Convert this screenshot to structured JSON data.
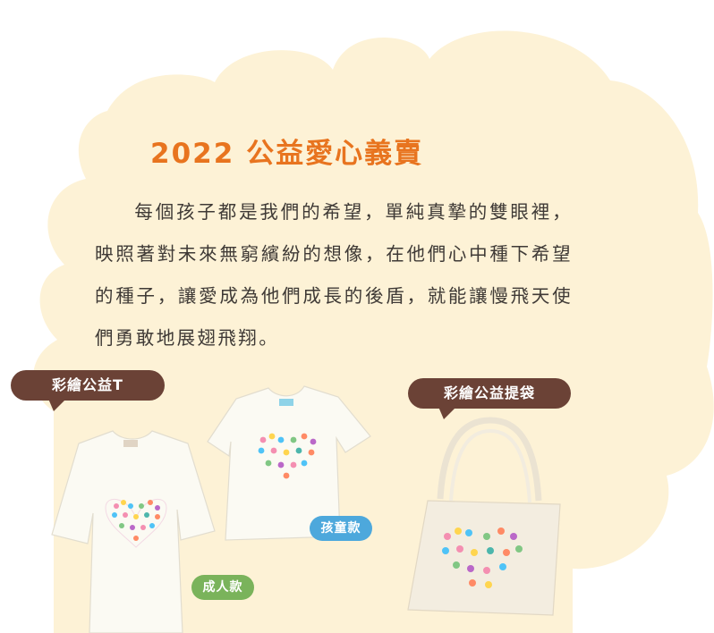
{
  "title": "2022 公益愛心義賣",
  "paragraph": "每個孩子都是我們的希望，單純真摯的雙眼裡，映照著對未來無窮繽紛的想像，在他們心中種下希望的種子，讓愛成為他們成長的後盾，就能讓慢飛天使們勇敢地展翅飛翔。",
  "products": {
    "tshirt_label": "彩繪公益T",
    "bag_label": "彩繪公益提袋",
    "adult_tag": "成人款",
    "kid_tag": "孩童款"
  },
  "colors": {
    "cloud": "#fdf2d6",
    "title": "#e8741f",
    "bubble": "#6b4236",
    "adult_tag": "#7ab35b",
    "kid_tag": "#4da8dc"
  }
}
